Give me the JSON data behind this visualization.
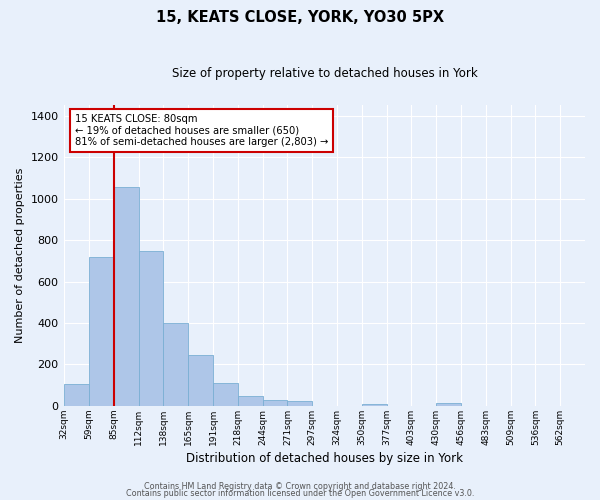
{
  "title1": "15, KEATS CLOSE, YORK, YO30 5PX",
  "title2": "Size of property relative to detached houses in York",
  "xlabel": "Distribution of detached houses by size in York",
  "ylabel": "Number of detached properties",
  "bar_labels": [
    "32sqm",
    "59sqm",
    "85sqm",
    "112sqm",
    "138sqm",
    "165sqm",
    "191sqm",
    "218sqm",
    "244sqm",
    "271sqm",
    "297sqm",
    "324sqm",
    "350sqm",
    "377sqm",
    "403sqm",
    "430sqm",
    "456sqm",
    "483sqm",
    "509sqm",
    "536sqm",
    "562sqm"
  ],
  "bar_heights": [
    107,
    720,
    1057,
    747,
    400,
    244,
    109,
    49,
    28,
    23,
    0,
    0,
    10,
    0,
    0,
    15,
    0,
    0,
    0,
    0,
    0
  ],
  "bar_color": "#aec6e8",
  "bar_edgecolor": "#7aafd4",
  "bg_color": "#e8f0fb",
  "grid_color": "#ffffff",
  "vline_x_index": 2,
  "vline_color": "#cc0000",
  "annotation_text": "15 KEATS CLOSE: 80sqm\n← 19% of detached houses are smaller (650)\n81% of semi-detached houses are larger (2,803) →",
  "annotation_box_color": "#ffffff",
  "annotation_box_edgecolor": "#cc0000",
  "ylim": [
    0,
    1450
  ],
  "yticks": [
    0,
    200,
    400,
    600,
    800,
    1000,
    1200,
    1400
  ],
  "footer1": "Contains HM Land Registry data © Crown copyright and database right 2024.",
  "footer2": "Contains public sector information licensed under the Open Government Licence v3.0."
}
